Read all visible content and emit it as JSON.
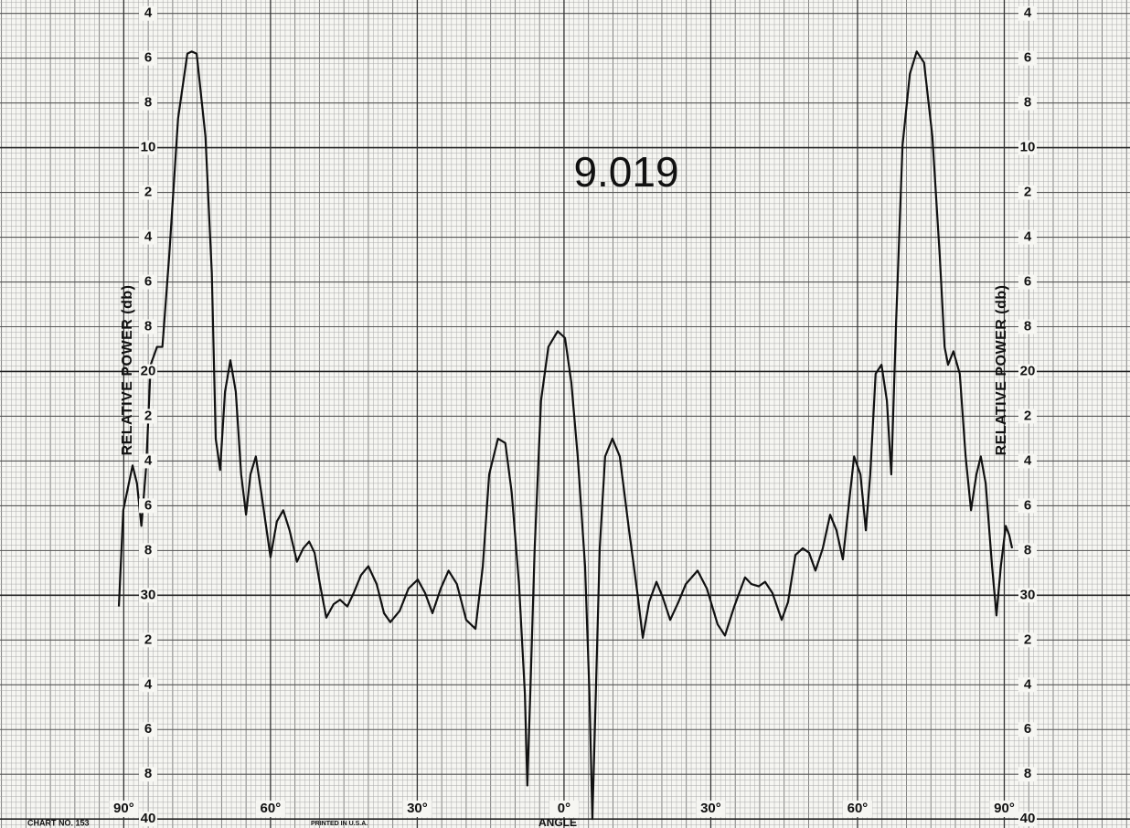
{
  "chart_data": {
    "type": "line",
    "annotation": "9.019",
    "ylabel": "RELATIVE POWER (db)",
    "xlabel": "ANGLE",
    "footer_left": "CHART NO. 153",
    "footer_center": "PRINTED IN U.S.A.",
    "xlim": [
      -115.3,
      115.7
    ],
    "ylim": [
      3.4,
      40.4
    ],
    "y_reversed": true,
    "grid": true,
    "xticks": [
      {
        "value": -90,
        "label": "90°"
      },
      {
        "value": -60,
        "label": "60°"
      },
      {
        "value": -30,
        "label": "30°"
      },
      {
        "value": 0,
        "label": "0°"
      },
      {
        "value": 30,
        "label": "30°"
      },
      {
        "value": 60,
        "label": "60°"
      },
      {
        "value": 90,
        "label": "90°"
      }
    ],
    "yticks": [
      4,
      6,
      8,
      10,
      {
        "value": 12,
        "label": "2"
      },
      {
        "value": 14,
        "label": "4"
      },
      {
        "value": 16,
        "label": "6"
      },
      {
        "value": 18,
        "label": "8"
      },
      20,
      {
        "value": 22,
        "label": "2"
      },
      {
        "value": 24,
        "label": "4"
      },
      {
        "value": 26,
        "label": "6"
      },
      {
        "value": 28,
        "label": "8"
      },
      30,
      {
        "value": 32,
        "label": "2"
      },
      {
        "value": 34,
        "label": "4"
      },
      {
        "value": 36,
        "label": "6"
      },
      {
        "value": 38,
        "label": "8"
      },
      40
    ],
    "color": "#111111",
    "x": [
      -91.0,
      -90.1,
      -88.2,
      -87.3,
      -86.4,
      -85.4,
      -84.5,
      -83.2,
      -82.1,
      -80.7,
      -78.9,
      -77.0,
      -76.1,
      -75.1,
      -73.3,
      -72.0,
      -71.2,
      -70.3,
      -69.3,
      -68.2,
      -67.1,
      -66.0,
      -65.0,
      -64.1,
      -63.0,
      -61.9,
      -60.0,
      -58.7,
      -57.4,
      -56.1,
      -54.6,
      -53.3,
      -52.1,
      -51.0,
      -49.9,
      -48.6,
      -47.1,
      -45.8,
      -44.3,
      -43.0,
      -41.5,
      -40.0,
      -38.3,
      -36.8,
      -35.5,
      -33.6,
      -31.8,
      -29.9,
      -28.4,
      -26.9,
      -25.2,
      -23.6,
      -21.9,
      -20.0,
      -18.1,
      -16.6,
      -15.3,
      -13.5,
      -12.0,
      -10.7,
      -9.2,
      -8.0,
      -7.5,
      -6.9,
      -6.0,
      -4.7,
      -3.2,
      -1.3,
      0.2,
      1.5,
      2.8,
      4.3,
      5.2,
      5.8,
      6.5,
      7.3,
      8.4,
      9.9,
      11.4,
      13.3,
      15.0,
      16.1,
      17.4,
      18.9,
      20.2,
      21.7,
      23.4,
      24.9,
      27.3,
      29.2,
      31.4,
      32.9,
      34.8,
      37.0,
      38.3,
      39.8,
      41.1,
      42.6,
      44.5,
      45.8,
      47.3,
      48.8,
      50.1,
      51.4,
      52.9,
      54.4,
      55.7,
      57.0,
      58.1,
      59.3,
      60.6,
      61.7,
      62.6,
      63.7,
      64.9,
      66.0,
      66.9,
      67.9,
      69.2,
      70.7,
      72.1,
      73.6,
      75.3,
      76.8,
      77.8,
      78.5,
      79.6,
      80.9,
      82.1,
      83.2,
      84.3,
      85.2,
      86.2,
      87.5,
      88.4,
      89.3,
      90.3,
      91.0,
      91.6
    ],
    "values": [
      30.5,
      26.2,
      24.2,
      25.0,
      26.9,
      24.2,
      19.7,
      18.9,
      18.9,
      14.8,
      8.7,
      5.8,
      5.7,
      5.8,
      9.5,
      15.6,
      23.0,
      24.4,
      20.9,
      19.5,
      20.9,
      24.6,
      26.4,
      24.6,
      23.8,
      25.4,
      28.3,
      26.7,
      26.2,
      27.1,
      28.5,
      27.9,
      27.6,
      28.1,
      29.5,
      31.0,
      30.4,
      30.2,
      30.5,
      29.9,
      29.1,
      28.7,
      29.5,
      30.8,
      31.2,
      30.7,
      29.7,
      29.3,
      29.9,
      30.8,
      29.7,
      28.9,
      29.5,
      31.1,
      31.5,
      28.7,
      24.6,
      23.0,
      23.2,
      25.4,
      29.5,
      34.4,
      38.5,
      34.4,
      27.9,
      21.3,
      18.9,
      18.2,
      18.5,
      20.5,
      23.8,
      28.7,
      34.4,
      40,
      34.4,
      27.9,
      23.8,
      23.0,
      23.8,
      27.1,
      29.9,
      31.9,
      30.3,
      29.4,
      30.1,
      31.1,
      30.3,
      29.5,
      28.9,
      29.7,
      31.3,
      31.8,
      30.5,
      29.2,
      29.5,
      29.6,
      29.4,
      29.9,
      31.1,
      30.3,
      28.2,
      27.9,
      28.1,
      28.9,
      27.9,
      26.4,
      27.1,
      28.4,
      26.2,
      23.8,
      24.6,
      27.1,
      24.6,
      20.1,
      19.7,
      21.3,
      24.6,
      17.7,
      9.9,
      6.7,
      5.7,
      6.2,
      9.5,
      14.8,
      18.9,
      19.7,
      19.1,
      20.1,
      23.8,
      26.2,
      24.6,
      23.8,
      25.0,
      28.7,
      30.9,
      28.7,
      26.9,
      27.3,
      27.9
    ]
  }
}
